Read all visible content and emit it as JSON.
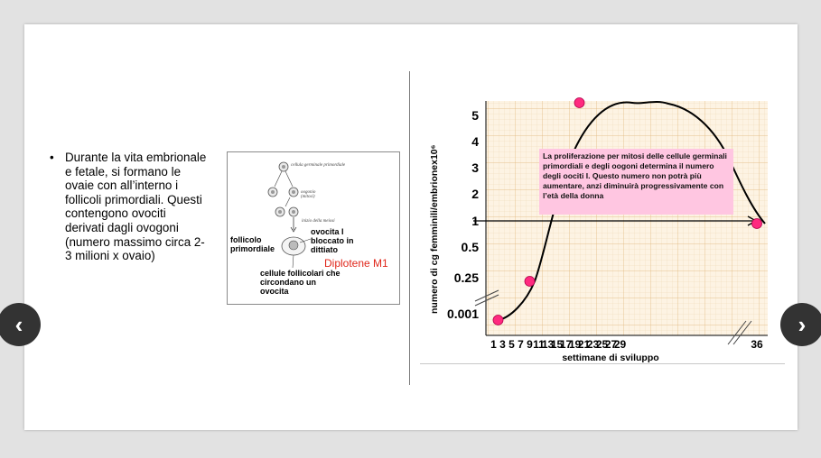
{
  "slide": {
    "bullet_marker": "•",
    "bullet_text": "Durante la vita embrionale e fetale, si formano le ovaie con all’interno i follicoli primordiali. Questi contengono ovociti derivati dagli ovogoni (numero massimo circa 2-3 milioni x ovaio)"
  },
  "diagram": {
    "label_germinal": "cellula germinale primordiale",
    "label_oogonia": "oogonio (mitosi)",
    "label_meiosis": "inizio della meiosi",
    "label_oocyte": "ovocita I bloccato in dittiato",
    "label_follicle": "follicolo primordiale",
    "label_follicular_cells": "cellule follicolari che circondano un ovocita",
    "label_diplotene": "Diplotene M1",
    "accent_color": "#e0261a"
  },
  "chart_data": {
    "type": "line",
    "ylabel": "numero di cg femminili/embrionex10⁶",
    "xlabel": "settimane di sviluppo",
    "y_ticks": [
      "5",
      "4",
      "3",
      "2",
      "1",
      "0.5",
      "0.25",
      "0.001"
    ],
    "x_ticks": [
      "1",
      "3",
      "5",
      "7",
      "9",
      "11",
      "13",
      "15",
      "17",
      "19",
      "21",
      "23",
      "25",
      "27",
      "29",
      "36"
    ],
    "y_scale": "categorical (non-linear)",
    "grid": true,
    "axis_breaks": true,
    "curve_color": "#000000",
    "marker_color": "#ff2a7f",
    "grid_color": "#e9c89c",
    "background_color": "#fdf3e3",
    "series": [
      {
        "values": [
          {
            "week": 1,
            "y": 0.001
          },
          {
            "week": 9,
            "y": 0.25
          },
          {
            "week": 20,
            "y": 5.1
          },
          {
            "week": 36,
            "y": 1
          }
        ]
      }
    ],
    "annotation": "La proliferazione per mitosi delle cellule germinali primordiali e degli oogoni determina il numero degli oociti I. Questo numero  non potrà più aumentare, anzi diminuirà progressivamente con l’età della donna",
    "annotation_color": "#ffc6e1"
  },
  "nav": {
    "prev_icon": "‹",
    "next_icon": "›"
  }
}
